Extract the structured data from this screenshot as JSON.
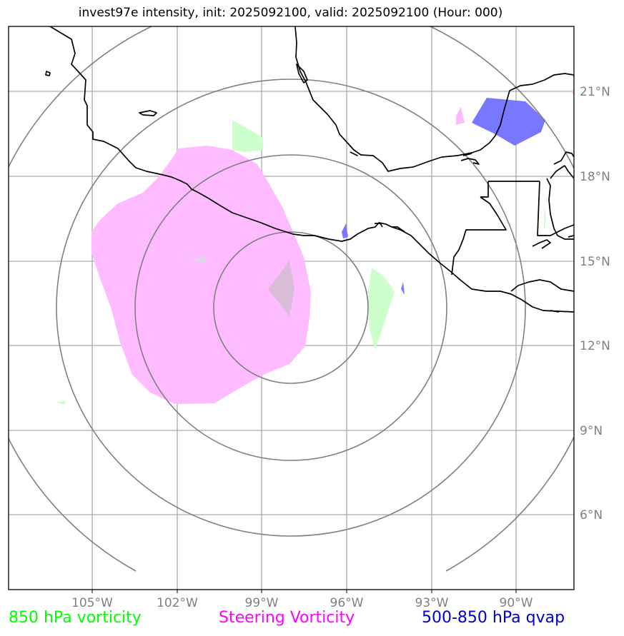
{
  "title": "invest97e intensity, init: 2025092100, valid: 2025092100 (Hour: 000)",
  "lat_labels": [
    "21°N",
    "18°N",
    "15°N",
    "12°N",
    "9°N",
    "6°N"
  ],
  "lon_labels": [
    "105°W",
    "102°W",
    "99°W",
    "96°W",
    "93°W",
    "90°W"
  ],
  "legend": {
    "green": "850 hPa vorticity",
    "magenta": "Steering Vorticity",
    "blue": "500-850 hPa qvap"
  },
  "colors": {
    "vorticity_850": "#ccffcc",
    "steering_vorticity": "#ffbbff",
    "qvap": "#7777ff",
    "grid": "#aaaaaa",
    "range_rings": "#808080",
    "coastline": "#000000"
  }
}
